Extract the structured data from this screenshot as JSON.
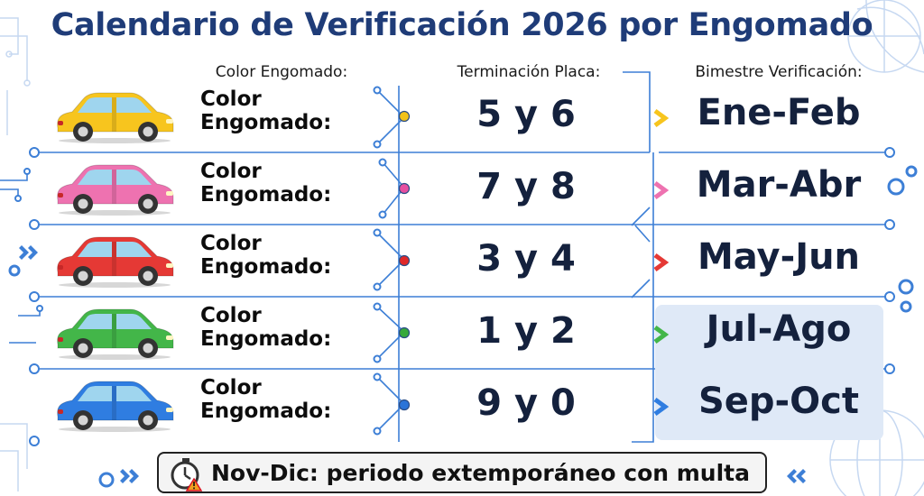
{
  "title": "Calendario de Verificación 2026 por Engomado",
  "headers": {
    "color": "Color Engomado:",
    "plate": "Terminación Placa:",
    "period": "Bimestre Verificación:"
  },
  "rows": [
    {
      "label_line1": "Color",
      "label_line2": "Engomado:",
      "plate": "5 y 6",
      "period": "Ene-Feb",
      "color": "#f7c51e",
      "dot": "#f2c21a"
    },
    {
      "label_line1": "Color",
      "label_line2": "Engomado:",
      "plate": "7 y 8",
      "period": "Mar-Abr",
      "color": "#ee72b0",
      "dot": "#e64fa0"
    },
    {
      "label_line1": "Color",
      "label_line2": "Engomado:",
      "plate": "3 y 4",
      "period": "May-Jun",
      "color": "#e53935",
      "dot": "#e02828"
    },
    {
      "label_line1": "Color",
      "label_line2": "Engomado:",
      "plate": "1 y 2",
      "period": "Jul-Ago",
      "color": "#43b649",
      "dot": "#37a93b"
    },
    {
      "label_line1": "Color",
      "label_line2": "Engomado:",
      "plate": "9 y 0",
      "period": "Sep-Oct",
      "color": "#2f7de1",
      "dot": "#2a74d8"
    }
  ],
  "footer": {
    "text": "Nov-Dic: periodo extemporáneo con multa",
    "icon": "stopwatch-warning-icon"
  },
  "colors": {
    "title": "#1f3c78",
    "circuit": "#3d7fd6",
    "highlight": "#dfe9f7"
  }
}
